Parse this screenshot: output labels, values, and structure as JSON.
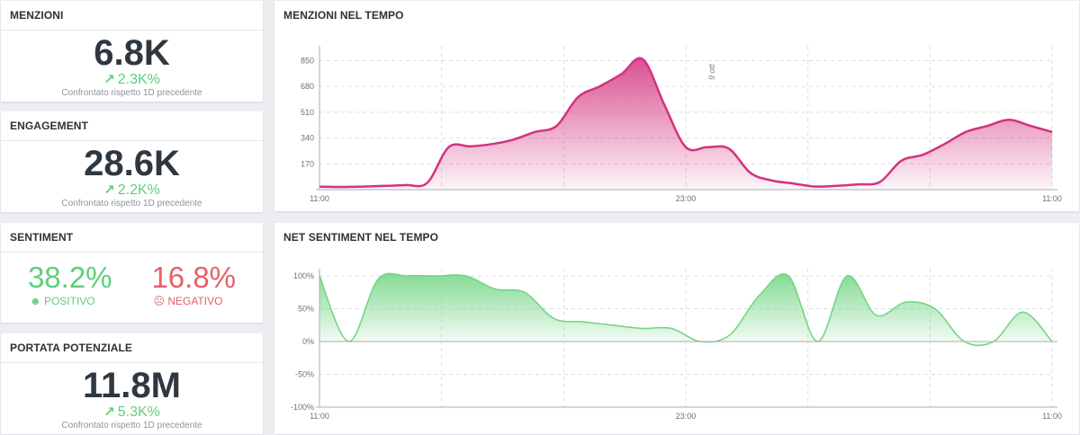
{
  "kpis": {
    "mentions": {
      "title": "MENZIONI",
      "value": "6.8K",
      "delta": "2.3K%",
      "compare": "Confrontato rispetto 1D precedente"
    },
    "engagement": {
      "title": "ENGAGEMENT",
      "value": "28.6K",
      "delta": "2.2K%",
      "compare": "Confrontato rispetto 1D precedente"
    },
    "sentiment": {
      "title": "SENTIMENT",
      "positive_value": "38.2%",
      "positive_label": "POSITIVO",
      "negative_value": "16.8%",
      "negative_label": "NEGATIVO"
    },
    "reach": {
      "title": "PORTATA POTENZIALE",
      "value": "11.8M",
      "delta": "5.3K%",
      "compare": "Confrontato rispetto 1D precedente"
    }
  },
  "colors": {
    "positive": "#5fcf7a",
    "negative": "#e5606a",
    "mentions_line": "#d4327e",
    "sentiment_line": "#6fd481"
  },
  "chart_data": [
    {
      "type": "area",
      "title": "MENZIONI NEL TEMPO",
      "x_ticks": [
        "11:00",
        "23:00",
        "11:00"
      ],
      "y_ticks": [
        170,
        340,
        510,
        680,
        850
      ],
      "ylim": [
        0,
        900
      ],
      "annotation": "9 ott",
      "grid": true,
      "series": [
        {
          "values": [
            20,
            18,
            20,
            25,
            30,
            45,
            280,
            285,
            300,
            330,
            380,
            420,
            610,
            680,
            760,
            860,
            560,
            280,
            280,
            270,
            110,
            60,
            40,
            20,
            25,
            35,
            50,
            190,
            230,
            300,
            380,
            420,
            460,
            420,
            380
          ]
        }
      ]
    },
    {
      "type": "area",
      "title": "NET SENTIMENT NEL TEMPO",
      "x_ticks": [
        "11:00",
        "23:00",
        "11:00"
      ],
      "y_ticks": [
        "100%",
        "50%",
        "0%",
        "-50%",
        "-100%"
      ],
      "ylim": [
        -100,
        100
      ],
      "grid": true,
      "series": [
        {
          "values": [
            100,
            0,
            95,
            100,
            100,
            100,
            80,
            75,
            35,
            30,
            25,
            20,
            20,
            0,
            10,
            70,
            100,
            0,
            100,
            40,
            60,
            50,
            0,
            0,
            45,
            0
          ]
        }
      ]
    }
  ]
}
